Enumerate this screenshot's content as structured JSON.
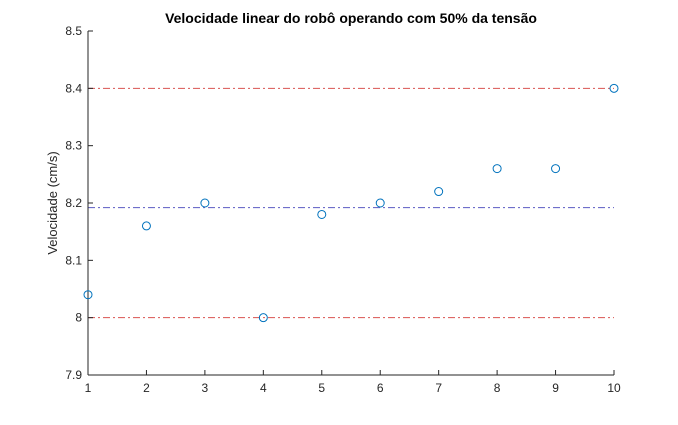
{
  "chart_data": {
    "type": "scatter",
    "title": "Velocidade linear do robô operando com 50% da tensão",
    "xlabel": "",
    "ylabel": "Velocidade (cm/s)",
    "xlim": [
      1,
      10
    ],
    "ylim": [
      7.9,
      8.5
    ],
    "xticks": [
      "1",
      "2",
      "3",
      "4",
      "5",
      "6",
      "7",
      "8",
      "9",
      "10"
    ],
    "yticks": [
      "7.9",
      "8",
      "8.1",
      "8.2",
      "8.3",
      "8.4",
      "8.5"
    ],
    "grid": false,
    "x": [
      1,
      2,
      3,
      4,
      5,
      6,
      7,
      8,
      9,
      10
    ],
    "y": [
      8.04,
      8.16,
      8.2,
      8.0,
      8.18,
      8.2,
      8.22,
      8.26,
      8.26,
      8.4
    ],
    "marker_color": "#0072BD",
    "reference_lines": [
      {
        "y": 8.4,
        "color": "#D95350",
        "style": "dash-dot"
      },
      {
        "y": 8.192,
        "color": "#5B5BC2",
        "style": "dash-dot"
      },
      {
        "y": 8.0,
        "color": "#D95350",
        "style": "dash-dot"
      }
    ]
  }
}
